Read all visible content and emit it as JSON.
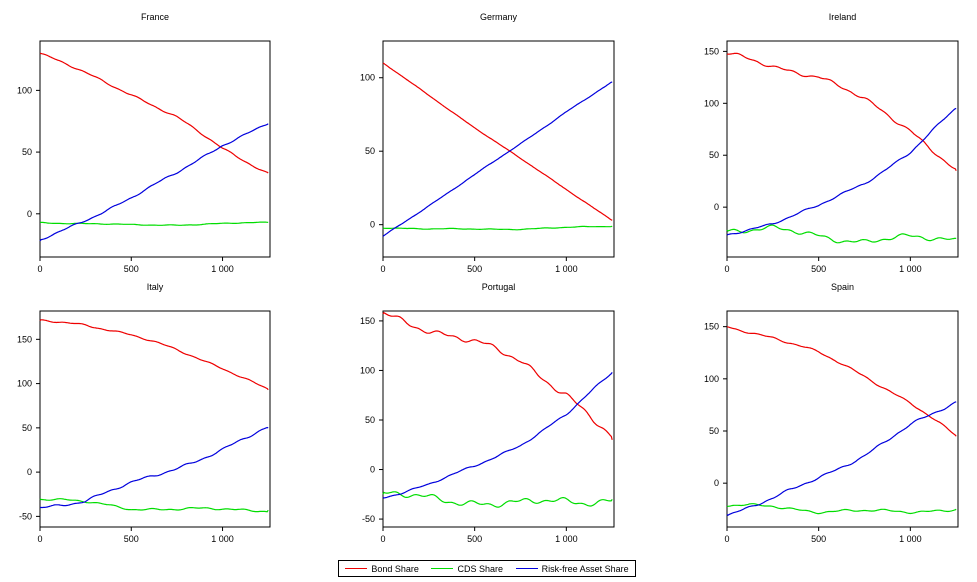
{
  "legend": {
    "items": [
      {
        "label": "Bond Share",
        "color": "#ee0000"
      },
      {
        "label": "CDS Share",
        "color": "#00dd00"
      },
      {
        "label": "Risk-free Asset Share",
        "color": "#0000dd"
      }
    ]
  },
  "chart_data": [
    {
      "type": "line",
      "title": "France",
      "xlim": [
        0,
        1260
      ],
      "ylim": [
        -35,
        140
      ],
      "xticks": [
        0,
        500,
        1000
      ],
      "xtick_labels": [
        "0",
        "500",
        "1 000"
      ],
      "yticks": [
        0,
        50,
        100
      ],
      "ytick_labels": [
        "0",
        "50",
        "100"
      ],
      "x": [
        0,
        250,
        500,
        750,
        1000,
        1250
      ],
      "series": [
        {
          "name": "Bond Share",
          "color": "#ee0000",
          "values": [
            130,
            114,
            97,
            78,
            53,
            33
          ]
        },
        {
          "name": "CDS Share",
          "color": "#00dd00",
          "values": [
            -7,
            -8,
            -9,
            -9,
            -8,
            -7
          ]
        },
        {
          "name": "Risk-free Asset Share",
          "color": "#0000dd",
          "values": [
            -22,
            -5,
            13,
            33,
            56,
            73
          ]
        }
      ]
    },
    {
      "type": "line",
      "title": "Germany",
      "xlim": [
        0,
        1260
      ],
      "ylim": [
        -22,
        125
      ],
      "xticks": [
        0,
        500,
        1000
      ],
      "xtick_labels": [
        "0",
        "500",
        "1 000"
      ],
      "yticks": [
        0,
        50,
        100
      ],
      "ytick_labels": [
        "0",
        "50",
        "100"
      ],
      "x": [
        0,
        250,
        500,
        750,
        1000,
        1250
      ],
      "series": [
        {
          "name": "Bond Share",
          "color": "#ee0000",
          "values": [
            110,
            88,
            66,
            45,
            24,
            3
          ]
        },
        {
          "name": "CDS Share",
          "color": "#00dd00",
          "values": [
            -2,
            -3,
            -3,
            -3,
            -2,
            -1
          ]
        },
        {
          "name": "Risk-free Asset Share",
          "color": "#0000dd",
          "values": [
            -8,
            13,
            34,
            55,
            77,
            97
          ]
        }
      ]
    },
    {
      "type": "line",
      "title": "Ireland",
      "xlim": [
        0,
        1260
      ],
      "ylim": [
        -48,
        160
      ],
      "xticks": [
        0,
        500,
        1000
      ],
      "xtick_labels": [
        "0",
        "500",
        "1 000"
      ],
      "yticks": [
        0,
        50,
        100,
        150
      ],
      "ytick_labels": [
        "0",
        "50",
        "100",
        "150"
      ],
      "x": [
        0,
        250,
        500,
        750,
        1000,
        1250
      ],
      "series": [
        {
          "name": "Bond Share",
          "color": "#ee0000",
          "values": [
            147,
            136,
            126,
            103,
            75,
            35
          ]
        },
        {
          "name": "CDS Share",
          "color": "#00dd00",
          "values": [
            -22,
            -22,
            -27,
            -33,
            -30,
            -30
          ]
        },
        {
          "name": "Risk-free Asset Share",
          "color": "#0000dd",
          "values": [
            -27,
            -15,
            1,
            23,
            53,
            95
          ]
        }
      ]
    },
    {
      "type": "line",
      "title": "Italy",
      "xlim": [
        0,
        1260
      ],
      "ylim": [
        -62,
        182
      ],
      "xticks": [
        0,
        500,
        1000
      ],
      "xtick_labels": [
        "0",
        "500",
        "1 000"
      ],
      "yticks": [
        -50,
        0,
        50,
        100,
        150
      ],
      "ytick_labels": [
        "-50",
        "0",
        "50",
        "100",
        "150"
      ],
      "x": [
        0,
        250,
        500,
        750,
        1000,
        1250
      ],
      "series": [
        {
          "name": "Bond Share",
          "color": "#ee0000",
          "values": [
            171,
            167,
            155,
            138,
            118,
            93
          ]
        },
        {
          "name": "CDS Share",
          "color": "#00dd00",
          "values": [
            -30,
            -34,
            -41,
            -42,
            -42,
            -43
          ]
        },
        {
          "name": "Risk-free Asset Share",
          "color": "#0000dd",
          "values": [
            -40,
            -32,
            -13,
            5,
            25,
            50
          ]
        }
      ]
    },
    {
      "type": "line",
      "title": "Portugal",
      "xlim": [
        0,
        1260
      ],
      "ylim": [
        -58,
        160
      ],
      "xticks": [
        0,
        500,
        1000
      ],
      "xtick_labels": [
        "0",
        "500",
        "1 000"
      ],
      "yticks": [
        -50,
        0,
        50,
        100,
        150
      ],
      "ytick_labels": [
        "-50",
        "0",
        "50",
        "100",
        "150"
      ],
      "x": [
        0,
        250,
        500,
        750,
        1000,
        1250
      ],
      "series": [
        {
          "name": "Bond Share",
          "color": "#ee0000",
          "values": [
            157,
            142,
            128,
            110,
            77,
            30
          ]
        },
        {
          "name": "CDS Share",
          "color": "#00dd00",
          "values": [
            -25,
            -30,
            -32,
            -35,
            -32,
            -30
          ]
        },
        {
          "name": "Risk-free Asset Share",
          "color": "#0000dd",
          "values": [
            -28,
            -15,
            3,
            25,
            55,
            98
          ]
        }
      ]
    },
    {
      "type": "line",
      "title": "Spain",
      "xlim": [
        0,
        1260
      ],
      "ylim": [
        -42,
        165
      ],
      "xticks": [
        0,
        500,
        1000
      ],
      "xtick_labels": [
        "0",
        "500",
        "1 000"
      ],
      "yticks": [
        0,
        50,
        100,
        150
      ],
      "ytick_labels": [
        "0",
        "50",
        "100",
        "150"
      ],
      "x": [
        0,
        250,
        500,
        750,
        1000,
        1250
      ],
      "series": [
        {
          "name": "Bond Share",
          "color": "#ee0000",
          "values": [
            150,
            140,
            125,
            103,
            77,
            45
          ]
        },
        {
          "name": "CDS Share",
          "color": "#00dd00",
          "values": [
            -22,
            -22,
            -27,
            -27,
            -27,
            -25
          ]
        },
        {
          "name": "Risk-free Asset Share",
          "color": "#0000dd",
          "values": [
            -30,
            -15,
            5,
            27,
            55,
            78
          ]
        }
      ]
    }
  ]
}
